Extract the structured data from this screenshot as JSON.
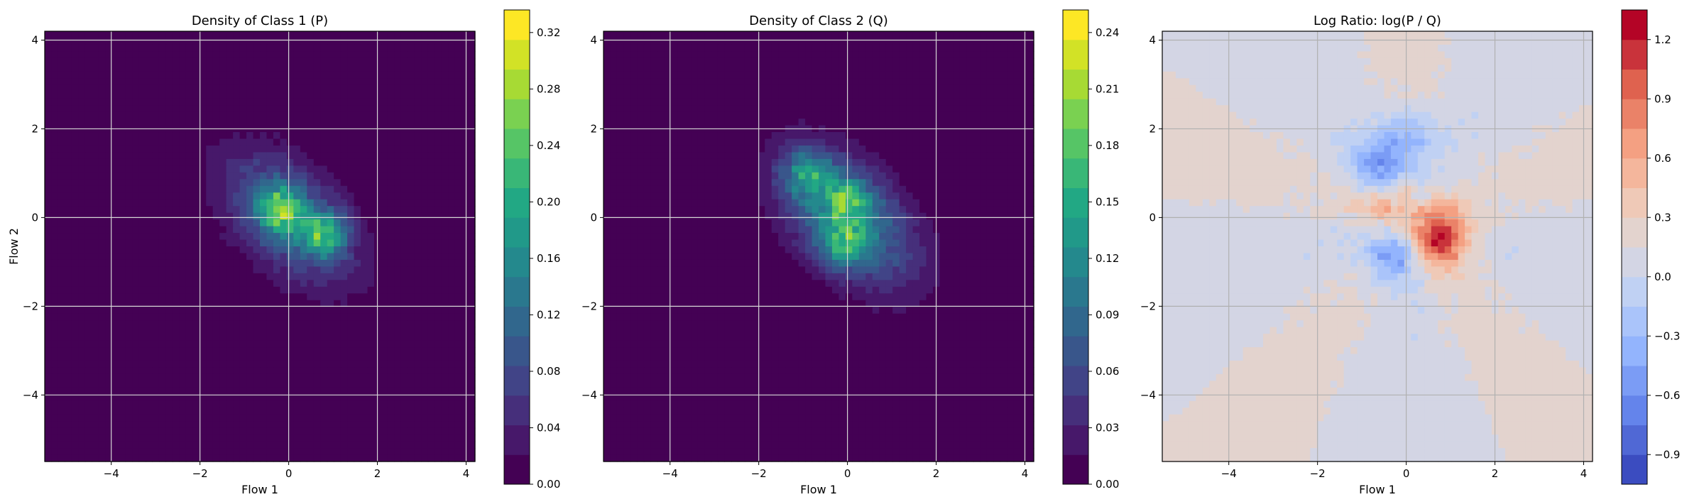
{
  "chart_data": [
    {
      "type": "heatmap",
      "title": "Density of Class 1 (P)",
      "xlabel": "Flow 1",
      "ylabel": "Flow 2",
      "xlim": [
        -5.5,
        4.2
      ],
      "ylim": [
        -5.5,
        4.2
      ],
      "xticks": [
        -4,
        -2,
        0,
        2,
        4
      ],
      "yticks": [
        -4,
        -2,
        0,
        2,
        4
      ],
      "grid": true,
      "colormap": "viridis",
      "colorbar": {
        "range": [
          0,
          0.336
        ],
        "levels": 16,
        "ticks": [
          0.0,
          0.04,
          0.08,
          0.12,
          0.16,
          0.2,
          0.24,
          0.28,
          0.32
        ]
      },
      "components": [
        {
          "center": [
            -0.2,
            0.2
          ],
          "peak": 0.32
        },
        {
          "center": [
            0.8,
            -0.4
          ],
          "peak": 0.3
        }
      ]
    },
    {
      "type": "heatmap",
      "title": "Density of Class 2 (Q)",
      "xlabel": "Flow 1",
      "ylabel": "",
      "xlim": [
        -5.5,
        4.2
      ],
      "ylim": [
        -5.5,
        4.2
      ],
      "xticks": [
        -4,
        -2,
        0,
        2,
        4
      ],
      "yticks": [
        -4,
        -2,
        0,
        2,
        4
      ],
      "grid": true,
      "colormap": "viridis",
      "colorbar": {
        "range": [
          0,
          0.252
        ],
        "levels": 16,
        "ticks": [
          0.0,
          0.03,
          0.06,
          0.09,
          0.12,
          0.15,
          0.18,
          0.21,
          0.24
        ]
      },
      "components": [
        {
          "center": [
            -0.9,
            1.0
          ],
          "peak": 0.22
        },
        {
          "center": [
            0.0,
            0.4
          ],
          "peak": 0.21
        },
        {
          "center": [
            -0.1,
            -0.6
          ],
          "peak": 0.22
        }
      ]
    },
    {
      "type": "heatmap",
      "title": "Log Ratio: log(P / Q)",
      "xlabel": "Flow 1",
      "ylabel": "",
      "xlim": [
        -5.5,
        4.2
      ],
      "ylim": [
        -5.5,
        4.2
      ],
      "xticks": [
        -4,
        -2,
        0,
        2,
        4
      ],
      "yticks": [
        -4,
        -2,
        0,
        2,
        4
      ],
      "grid": true,
      "colormap": "coolwarm",
      "colorbar": {
        "range": [
          -1.05,
          1.35
        ],
        "levels": 16,
        "ticks": [
          -0.9,
          -0.6,
          -0.3,
          0.0,
          0.3,
          0.6,
          0.9,
          1.2
        ]
      },
      "features": [
        {
          "center": [
            0.8,
            -0.4
          ],
          "value": 1.25
        },
        {
          "center": [
            -0.5,
            0.2
          ],
          "value": 0.6
        },
        {
          "center": [
            -0.6,
            1.1
          ],
          "value": -0.5
        },
        {
          "center": [
            0.0,
            1.8
          ],
          "value": -0.4
        },
        {
          "center": [
            -0.4,
            -0.8
          ],
          "value": -0.55
        }
      ]
    }
  ]
}
